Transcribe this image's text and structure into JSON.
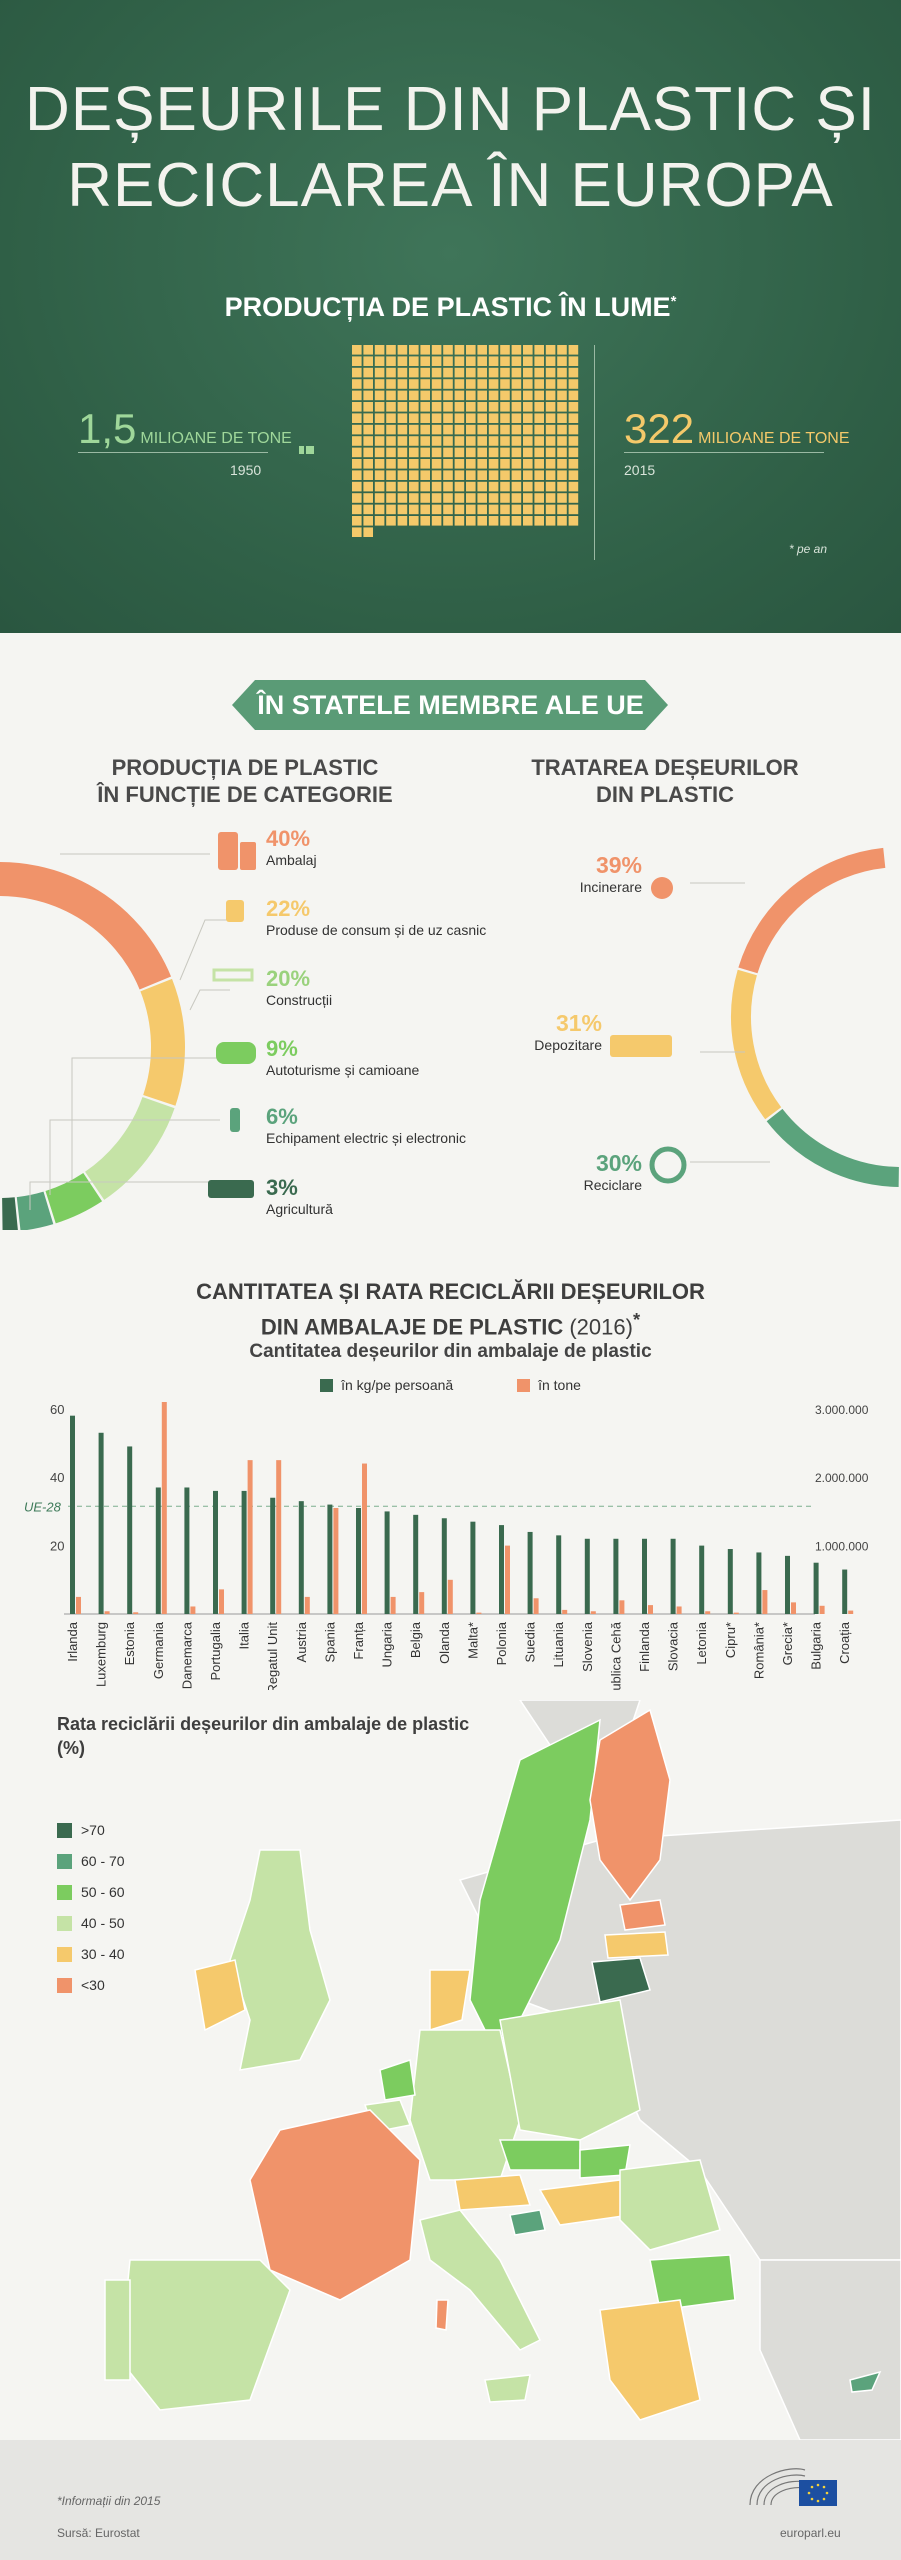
{
  "header": {
    "title_line1": "DEȘEURILE DIN PLASTIC ȘI",
    "title_line2": "RECICLAREA ÎN EUROPA",
    "world_title": "PRODUCȚIA DE PLASTIC ÎN LUME",
    "world_title_mark": "*",
    "val_1950": "1,5",
    "val_2015": "322",
    "unit": "MILIOANE DE TONE",
    "year_1950": "1950",
    "year_2015": "2015",
    "per_year_note": "* pe an"
  },
  "eu": {
    "banner": "ÎN STATELE MEMBRE ALE UE",
    "category_title_l1": "PRODUCȚIA DE PLASTIC",
    "category_title_l2": "ÎN FUNCȚIE DE CATEGORIE",
    "treatment_title_l1": "TRATAREA DEȘEURILOR",
    "treatment_title_l2": "DIN PLASTIC",
    "categories": [
      {
        "pct": "40%",
        "label": "Ambalaj",
        "color": "#f0936a",
        "icon": "packaging-icon",
        "value": 40
      },
      {
        "pct": "22%",
        "label": "Produse de consum și de uz casnic",
        "color": "#f5c96c",
        "icon": "chair-icon",
        "value": 22
      },
      {
        "pct": "20%",
        "label": "Construcții",
        "color": "#c5e3a6",
        "icon": "crane-icon",
        "value": 20
      },
      {
        "pct": "9%",
        "label": "Autoturisme și camioane",
        "color": "#7ccc5f",
        "icon": "car-icon",
        "value": 9
      },
      {
        "pct": "6%",
        "label": "Echipament electric și electronic",
        "color": "#5ba37c",
        "icon": "plug-icon",
        "value": 6
      },
      {
        "pct": "3%",
        "label": "Agricultură",
        "color": "#3a6a4f",
        "icon": "tractor-icon",
        "value": 3
      }
    ],
    "treatments": [
      {
        "pct": "39%",
        "label": "Incinerare",
        "color": "#f0936a",
        "icon": "flame-icon",
        "value": 39
      },
      {
        "pct": "31%",
        "label": "Depozitare",
        "color": "#f5c96c",
        "icon": "dump-truck-icon",
        "value": 31
      },
      {
        "pct": "30%",
        "label": "Reciclare",
        "color": "#5ba37c",
        "icon": "recycle-icon",
        "value": 30
      }
    ]
  },
  "bar_section": {
    "title_l1": "CANTITATEA ȘI RATA RECICLĂRII DEȘEURILOR",
    "title_l2": "DIN AMBALAJE DE PLASTIC",
    "title_year": "(2016)",
    "title_mark": "*",
    "subtitle": "Cantitatea deșeurilor din ambalaje de plastic",
    "legend_kg": "în kg/pe persoană",
    "legend_tone": "în tone",
    "eu28_label": "UE-28"
  },
  "chart_data": {
    "type": "bar",
    "title": "Cantitatea deșeurilor din ambalaje de plastic",
    "categories": [
      "Irlanda",
      "Luxemburg",
      "Estonia",
      "Germania",
      "Danemarca",
      "Portugalia",
      "Italia",
      "Regatul Unit",
      "Austria",
      "Spania",
      "Franța",
      "Ungaria",
      "Belgia",
      "Olanda",
      "Malta*",
      "Polonia",
      "Suedia",
      "Lituania",
      "Slovenia",
      "Republica Cehă",
      "Finlanda",
      "Slovacia",
      "Letonia",
      "Cipru*",
      "România*",
      "Grecia*",
      "Bulgaria",
      "Croația"
    ],
    "series": [
      {
        "name": "în kg/pe persoană",
        "axis": "left",
        "color": "#3a6a4f",
        "values": [
          58,
          53,
          49,
          37,
          37,
          36,
          36,
          34,
          33,
          32,
          31,
          30,
          29,
          28,
          27,
          26,
          24,
          23,
          22,
          22,
          22,
          22,
          20,
          19,
          18,
          17,
          15,
          13
        ]
      },
      {
        "name": "în tone",
        "axis": "right",
        "color": "#f0936a",
        "values": [
          250000,
          40000,
          25000,
          3100000,
          110000,
          360000,
          2250000,
          2250000,
          250000,
          1550000,
          2200000,
          250000,
          320000,
          500000,
          20000,
          1000000,
          230000,
          60000,
          40000,
          200000,
          130000,
          110000,
          40000,
          20000,
          350000,
          170000,
          120000,
          50000
        ]
      }
    ],
    "y_left": {
      "ticks": [
        20,
        40,
        60
      ],
      "ylim": [
        0,
        62
      ]
    },
    "y_right": {
      "ticks": [
        "1.000.000",
        "2.000.000",
        "3.000.000"
      ],
      "ylim": [
        0,
        3100000
      ]
    },
    "reference_line": {
      "label": "UE-28",
      "value": 31.5
    },
    "grid": false
  },
  "map": {
    "title": "Rata reciclării deșeurilor din ambalaje de plastic (%)",
    "legend": [
      {
        "label": ">70",
        "color": "#3a6a4f"
      },
      {
        "label": "60 - 70",
        "color": "#5ba37c"
      },
      {
        "label": "50 - 60",
        "color": "#7ccc5f"
      },
      {
        "label": "40 - 50",
        "color": "#c5e3a6"
      },
      {
        "label": "30 - 40",
        "color": "#f5c96c"
      },
      {
        "label": "<30",
        "color": "#f0936a"
      }
    ]
  },
  "footer": {
    "note": "*Informații din 2015",
    "source": "Sursă: Eurostat",
    "site": "europarl.eu"
  }
}
